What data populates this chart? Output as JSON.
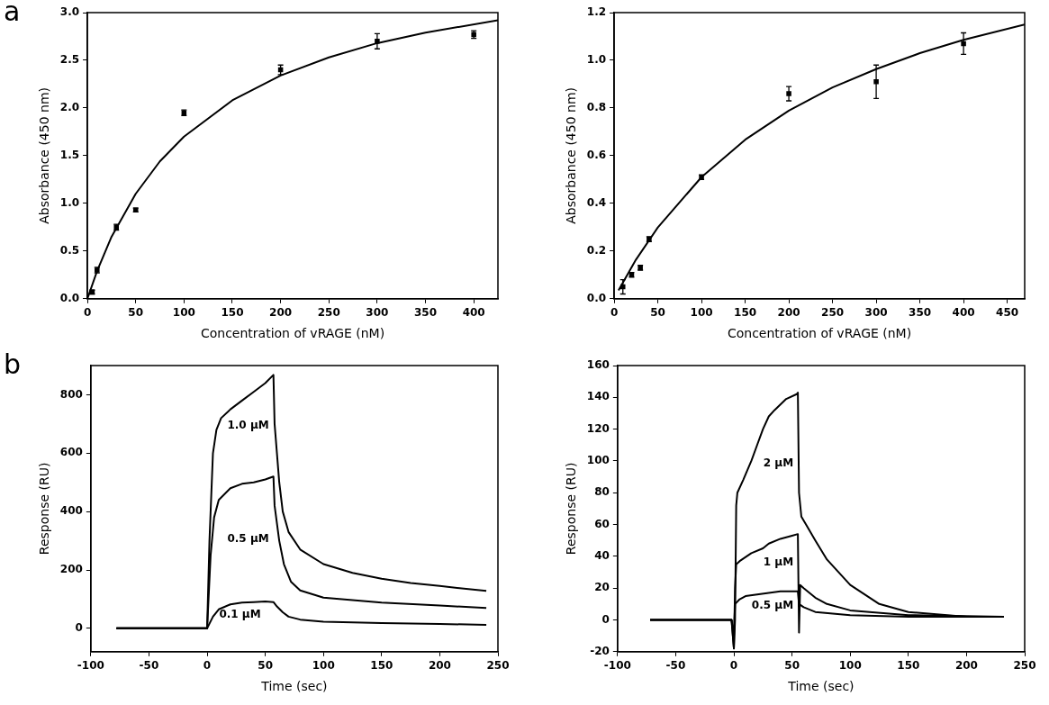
{
  "chart_data": [
    {
      "type": "scatter",
      "xlabel": "Concentration of vRAGE (nM)",
      "ylabel": "Absorbance (450 nm)",
      "title": "a",
      "xlim": [
        0,
        425
      ],
      "xticks": [
        0,
        50,
        100,
        150,
        200,
        250,
        300,
        350,
        400
      ],
      "ylim": [
        0,
        3
      ],
      "yticks": [
        {
          "value": 0,
          "label": "0.0"
        },
        0.5,
        {
          "value": 1,
          "label": "1.0"
        },
        1.5,
        {
          "value": 2,
          "label": "2.0"
        },
        2.5,
        {
          "value": 3,
          "label": "3.0"
        }
      ],
      "series": [
        {
          "type": "scatter",
          "marker": "square",
          "color": "#000000",
          "x": [
            5,
            10,
            30,
            50,
            100,
            200,
            300,
            400
          ],
          "values": [
            0.07,
            0.3,
            0.75,
            0.93,
            1.95,
            2.4,
            2.7,
            2.77
          ],
          "errors": [
            0.02,
            0.03,
            0.03,
            0.02,
            0.03,
            0.05,
            0.08,
            0.04
          ]
        },
        {
          "type": "line",
          "color": "#000000",
          "x": [
            0,
            10,
            25,
            50,
            75,
            100,
            150,
            200,
            250,
            300,
            350,
            425
          ],
          "values": [
            0,
            0.29,
            0.65,
            1.1,
            1.44,
            1.7,
            2.08,
            2.34,
            2.53,
            2.68,
            2.79,
            2.92
          ]
        }
      ]
    },
    {
      "type": "scatter",
      "xlabel": "Concentration of vRAGE (nM)",
      "ylabel": "Absorbance (450 nm)",
      "xlim": [
        0,
        470
      ],
      "xticks": [
        0,
        50,
        100,
        150,
        200,
        250,
        300,
        350,
        400,
        450
      ],
      "ylim": [
        0,
        1.2
      ],
      "yticks": [
        {
          "value": 0,
          "label": "0.0"
        },
        0.2,
        0.4,
        0.6,
        0.8,
        {
          "value": 1,
          "label": "1.0"
        },
        1.2
      ],
      "series": [
        {
          "type": "scatter",
          "marker": "square",
          "color": "#000000",
          "x": [
            10,
            20,
            30,
            40,
            100,
            200,
            300,
            400
          ],
          "values": [
            0.05,
            0.1,
            0.13,
            0.25,
            0.51,
            0.86,
            0.91,
            1.07
          ],
          "errors": [
            0.03,
            0.01,
            0.01,
            0.01,
            0.01,
            0.03,
            0.07,
            0.045
          ]
        },
        {
          "type": "line",
          "color": "#000000",
          "x": [
            5,
            25,
            50,
            100,
            150,
            200,
            250,
            300,
            350,
            400,
            470
          ],
          "values": [
            0.035,
            0.164,
            0.299,
            0.51,
            0.667,
            0.789,
            0.886,
            0.963,
            1.03,
            1.086,
            1.15
          ]
        }
      ]
    },
    {
      "type": "line",
      "xlabel": "Time (sec)",
      "ylabel": "Response (RU)",
      "title": "b",
      "annotations": [
        "1.0 μM",
        "0.5 μM",
        "0.1 μM"
      ],
      "xlim": [
        -100,
        250
      ],
      "xticks": [
        -100,
        -50,
        0,
        50,
        100,
        150,
        200,
        250
      ],
      "ylim": [
        -80,
        900
      ],
      "yticks": [
        0,
        200,
        400,
        600,
        800
      ],
      "series": [
        {
          "color": "#000000",
          "x": [
            -78,
            0,
            2,
            5,
            8,
            12,
            20,
            30,
            40,
            50,
            57,
            58,
            60,
            62,
            65,
            70,
            80,
            100,
            125,
            150,
            175,
            200,
            240
          ],
          "values": [
            0,
            0,
            300,
            600,
            680,
            720,
            750,
            780,
            810,
            840,
            868,
            700,
            600,
            500,
            400,
            330,
            270,
            220,
            190,
            170,
            155,
            145,
            128
          ]
        },
        {
          "color": "#000000",
          "x": [
            -78,
            0,
            3,
            6,
            10,
            20,
            30,
            40,
            50,
            57,
            58,
            62,
            66,
            72,
            80,
            100,
            150,
            200,
            240
          ],
          "values": [
            0,
            0,
            250,
            380,
            440,
            480,
            495,
            500,
            510,
            520,
            420,
            300,
            220,
            160,
            130,
            105,
            88,
            78,
            70
          ]
        },
        {
          "color": "#000000",
          "x": [
            -78,
            0,
            5,
            10,
            20,
            30,
            40,
            50,
            57,
            60,
            65,
            70,
            80,
            100,
            150,
            200,
            240
          ],
          "values": [
            0,
            0,
            40,
            65,
            82,
            88,
            90,
            92,
            90,
            75,
            55,
            40,
            30,
            23,
            18,
            15,
            12
          ]
        }
      ]
    },
    {
      "type": "line",
      "xlabel": "Time (sec)",
      "ylabel": "Response (RU)",
      "annotations": [
        "2 μM",
        "1 μM",
        "0.5 μM"
      ],
      "xlim": [
        -100,
        250
      ],
      "xticks": [
        -100,
        -50,
        0,
        50,
        100,
        150,
        200,
        250
      ],
      "ylim": [
        -20,
        160
      ],
      "yticks": [
        -20,
        0,
        20,
        40,
        60,
        80,
        100,
        120,
        140,
        160
      ],
      "series": [
        {
          "color": "#000000",
          "x": [
            -72,
            -2,
            0,
            1,
            2,
            3,
            8,
            15,
            20,
            25,
            30,
            35,
            45,
            54,
            55,
            56,
            58,
            62,
            70,
            80,
            100,
            125,
            150,
            200,
            232
          ],
          "values": [
            0,
            0,
            -18,
            0,
            72,
            80,
            88,
            100,
            110,
            120,
            128,
            132,
            139,
            142,
            143,
            80,
            65,
            60,
            50,
            38,
            22,
            10,
            5,
            2,
            2
          ]
        },
        {
          "color": "#000000",
          "x": [
            -72,
            -2,
            0,
            1,
            2,
            5,
            15,
            25,
            30,
            40,
            50,
            55,
            56,
            57,
            60,
            70,
            80,
            100,
            150,
            232
          ],
          "values": [
            0,
            0,
            -18,
            20,
            35,
            37,
            42,
            45,
            48,
            51,
            53,
            54,
            -8,
            22,
            20,
            14,
            10,
            6,
            3,
            2
          ]
        },
        {
          "color": "#000000",
          "x": [
            -72,
            -2,
            0,
            1,
            5,
            10,
            20,
            30,
            40,
            50,
            55,
            56,
            60,
            70,
            100,
            150,
            232
          ],
          "values": [
            0,
            0,
            -10,
            10,
            13,
            15,
            16,
            17,
            18,
            18,
            18,
            10,
            8,
            5,
            3,
            2,
            2
          ]
        }
      ]
    }
  ]
}
